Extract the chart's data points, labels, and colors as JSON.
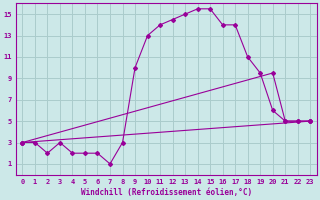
{
  "background_color": "#cce8e8",
  "grid_color": "#aacccc",
  "line_color": "#990099",
  "xlim": [
    -0.5,
    23.5
  ],
  "ylim": [
    0,
    16
  ],
  "xticks": [
    0,
    1,
    2,
    3,
    4,
    5,
    6,
    7,
    8,
    9,
    10,
    11,
    12,
    13,
    14,
    15,
    16,
    17,
    18,
    19,
    20,
    21,
    22,
    23
  ],
  "yticks": [
    1,
    3,
    5,
    7,
    9,
    11,
    13,
    15
  ],
  "xlabel": "Windchill (Refroidissement éolien,°C)",
  "series": [
    {
      "x": [
        0,
        1,
        2,
        3,
        4,
        5,
        6,
        7,
        8,
        9,
        10,
        11,
        12,
        13,
        14,
        15,
        16,
        17,
        18,
        19,
        20,
        21,
        22,
        23
      ],
      "y": [
        3,
        3,
        2,
        3,
        2,
        2,
        2,
        1,
        3,
        10,
        13,
        14,
        14.5,
        15,
        15.5,
        15.5,
        14,
        14,
        11,
        9.5,
        6,
        5,
        5,
        5
      ]
    },
    {
      "x": [
        0,
        23
      ],
      "y": [
        3,
        5
      ]
    },
    {
      "x": [
        0,
        20,
        21,
        22,
        23
      ],
      "y": [
        3,
        9.5,
        5,
        5,
        5
      ]
    }
  ],
  "axis_fontsize": 5.5,
  "tick_fontsize": 5.0
}
